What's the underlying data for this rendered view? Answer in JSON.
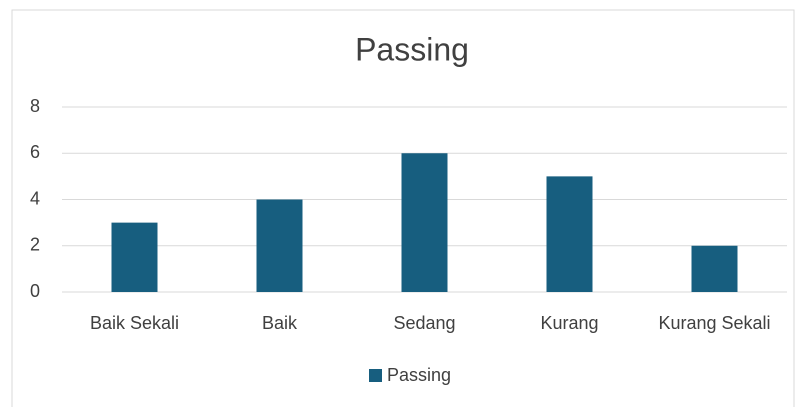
{
  "chart_data": {
    "type": "bar",
    "title": "Passing",
    "categories": [
      "Baik Sekali",
      "Baik",
      "Sedang",
      "Kurang",
      "Kurang Sekali"
    ],
    "series": [
      {
        "name": "Passing",
        "color": "#175e7f",
        "values": [
          3,
          4,
          6,
          5,
          2
        ]
      }
    ],
    "ylim": [
      0,
      8
    ],
    "yticks": [
      0,
      2,
      4,
      6,
      8
    ],
    "grid": true,
    "legend": "bottom"
  }
}
